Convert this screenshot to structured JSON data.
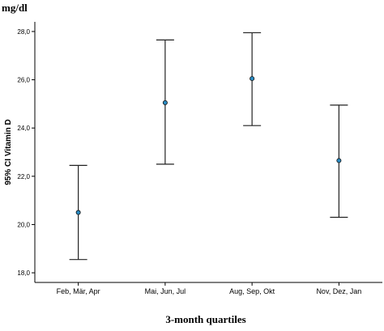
{
  "chart_data": {
    "type": "errorbar",
    "unit_label": "mg/dl",
    "xlabel": "3-month quartiles",
    "ylabel": "95% CI Vitamin D",
    "ylim": [
      17.6,
      28.4
    ],
    "yticks": [
      18,
      20,
      22,
      24,
      26,
      28
    ],
    "ytick_labels": [
      "18,0",
      "20,0",
      "22,0",
      "24,0",
      "26,0",
      "28,0"
    ],
    "categories": [
      "Feb, Mär, Apr",
      "Mai, Jun, Jul",
      "Aug, Sep, Okt",
      "Nov, Dez, Jan"
    ],
    "mean": [
      20.5,
      25.05,
      26.05,
      22.65
    ],
    "lower": [
      18.55,
      22.5,
      24.1,
      20.3
    ],
    "upper": [
      22.45,
      27.65,
      27.95,
      24.95
    ],
    "colors": {
      "point": "#2a8cc4",
      "line": "#222222"
    }
  }
}
